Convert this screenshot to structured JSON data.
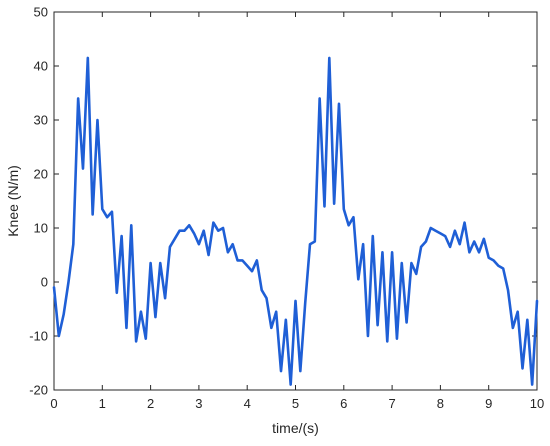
{
  "chart_data": {
    "type": "line",
    "title": "",
    "xlabel": "time/(s)",
    "ylabel": "Knee (N/m)",
    "xlim": [
      0,
      10
    ],
    "ylim": [
      -20,
      50
    ],
    "x_ticks": [
      0,
      1,
      2,
      3,
      4,
      5,
      6,
      7,
      8,
      9,
      10
    ],
    "y_ticks": [
      -20,
      -10,
      0,
      10,
      20,
      30,
      40,
      50
    ],
    "grid": false,
    "legend": "none",
    "series_color": "#1f5fd6",
    "series": [
      {
        "x": [
          0.0,
          0.1,
          0.2,
          0.3,
          0.4,
          0.5,
          0.6,
          0.7,
          0.8,
          0.9,
          1.0,
          1.1,
          1.2,
          1.3,
          1.4,
          1.5,
          1.6,
          1.7,
          1.8,
          1.9,
          2.0,
          2.1,
          2.2,
          2.3,
          2.4,
          2.5,
          2.6,
          2.7,
          2.8,
          2.9,
          3.0,
          3.1,
          3.2,
          3.3,
          3.4,
          3.5,
          3.6,
          3.7,
          3.8,
          3.9,
          4.0,
          4.1,
          4.2,
          4.3,
          4.4,
          4.5,
          4.6,
          4.7,
          4.8,
          4.9,
          5.0,
          5.1,
          5.2,
          5.3,
          5.4,
          5.5,
          5.6,
          5.7,
          5.8,
          5.9,
          6.0,
          6.1,
          6.2,
          6.3,
          6.4,
          6.5,
          6.6,
          6.7,
          6.8,
          6.9,
          7.0,
          7.1,
          7.2,
          7.3,
          7.4,
          7.5,
          7.6,
          7.7,
          7.8,
          7.9,
          8.0,
          8.1,
          8.2,
          8.3,
          8.4,
          8.5,
          8.6,
          8.7,
          8.8,
          8.9,
          9.0,
          9.1,
          9.2,
          9.3,
          9.4,
          9.5,
          9.6,
          9.7,
          9.8,
          9.9,
          10.0
        ],
        "y": [
          -1,
          -10,
          -6,
          0,
          7,
          34,
          21,
          41.5,
          12.5,
          30,
          13.5,
          12,
          13,
          -2,
          8.5,
          -8.5,
          10.5,
          -11,
          -5.5,
          -10.5,
          3.5,
          -6.5,
          3.5,
          -3,
          6.5,
          8,
          9.5,
          9.5,
          10.5,
          9,
          7,
          9.5,
          5,
          11,
          9.5,
          10,
          5.5,
          7,
          4,
          4,
          3,
          2,
          4,
          -1.5,
          -3,
          -8.5,
          -5.5,
          -16.5,
          -7,
          -19,
          -3.5,
          -16.5,
          -4,
          7,
          7.5,
          34,
          14,
          41.5,
          14.5,
          33,
          13.5,
          10.5,
          12,
          0.5,
          7,
          -10,
          8.5,
          -8,
          5.5,
          -11,
          5.5,
          -10.5,
          3.5,
          -7.5,
          3.5,
          1.5,
          6.5,
          7.5,
          10,
          9.5,
          9,
          8.5,
          6.5,
          9.5,
          7,
          11,
          5.5,
          7.5,
          5.5,
          8,
          4.5,
          4,
          3,
          2.5,
          -1.5,
          -8.5,
          -5.5,
          -16,
          -7,
          -19,
          -3.5
        ]
      }
    ]
  }
}
